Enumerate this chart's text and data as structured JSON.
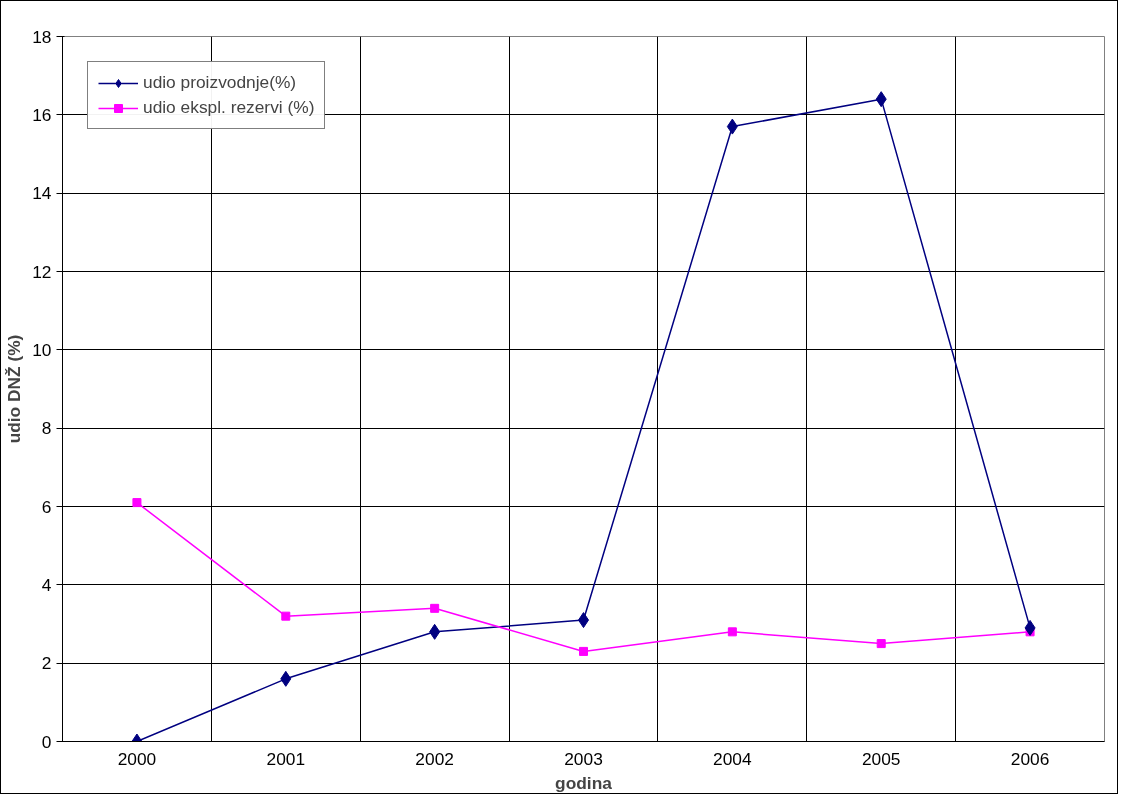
{
  "chart_data": {
    "type": "line",
    "xlabel": "godina",
    "ylabel": "udio DNŽ (%)",
    "categories": [
      "2000",
      "2001",
      "2002",
      "2003",
      "2004",
      "2005",
      "2006"
    ],
    "series": [
      {
        "name": "udio proizvodnje(%)",
        "color": "#000080",
        "marker": "diamond",
        "values": [
          0,
          1.6,
          2.8,
          3.1,
          15.7,
          16.4,
          2.9
        ]
      },
      {
        "name": "udio ekspl. rezervi (%)",
        "color": "#ff00ff",
        "marker": "square",
        "values": [
          6.1,
          3.2,
          3.4,
          2.3,
          2.8,
          2.5,
          2.8
        ]
      }
    ],
    "ylim": [
      0,
      18
    ],
    "yticks": [
      0,
      2,
      4,
      6,
      8,
      10,
      12,
      14,
      16,
      18
    ],
    "grid": true,
    "legend": "top left",
    "line_style": "solid"
  }
}
